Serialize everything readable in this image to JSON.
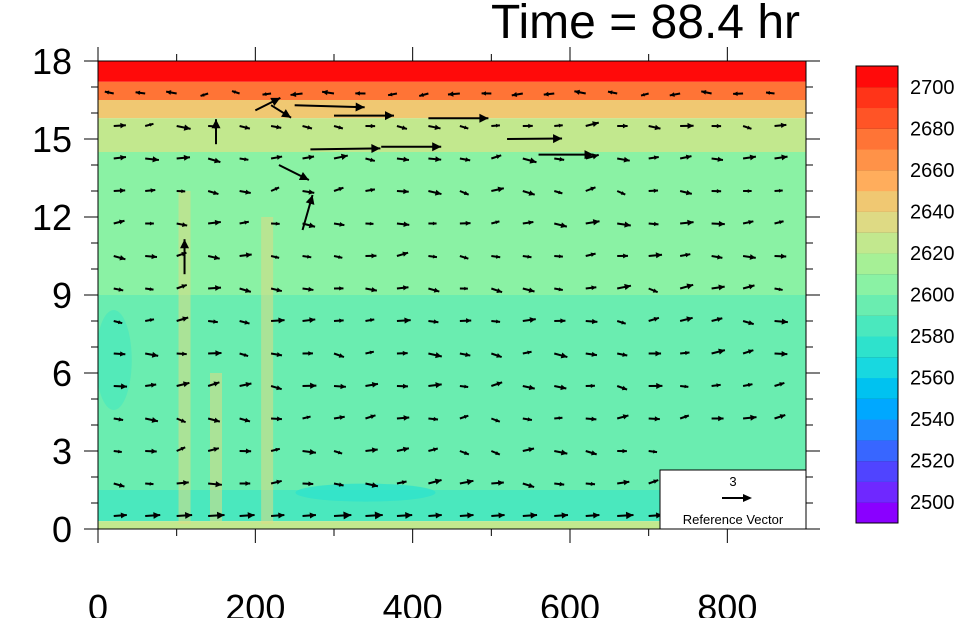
{
  "chart_data": {
    "type": "heatmap",
    "title": "Time = 88.4 hr",
    "xlabel": "",
    "ylabel": "",
    "xlim": [
      0,
      900
    ],
    "ylim": [
      0,
      18
    ],
    "x_ticks": [
      0,
      200,
      400,
      600,
      800
    ],
    "x_tick_labels": [
      "0",
      "200",
      "400",
      "600",
      "800"
    ],
    "y_ticks": [
      0,
      3,
      6,
      9,
      12,
      15,
      18
    ],
    "y_tick_labels": [
      "0",
      "3",
      "6",
      "9",
      "12",
      "15",
      "18"
    ],
    "grid": false,
    "colorbar": {
      "placement": "right",
      "levels": [
        2490,
        2500,
        2510,
        2520,
        2530,
        2540,
        2550,
        2560,
        2570,
        2580,
        2590,
        2600,
        2610,
        2620,
        2630,
        2640,
        2650,
        2660,
        2670,
        2680,
        2690,
        2700,
        2710
      ],
      "labels": [
        "2500",
        "2520",
        "2540",
        "2560",
        "2580",
        "2600",
        "2620",
        "2640",
        "2660",
        "2680",
        "2700"
      ],
      "label_values": [
        2500,
        2520,
        2540,
        2560,
        2580,
        2600,
        2620,
        2640,
        2660,
        2680,
        2700
      ],
      "colors": [
        "#8a00ff",
        "#6f28ff",
        "#5044ff",
        "#3866ff",
        "#1f8aff",
        "#00a8ff",
        "#00c2f0",
        "#18d8e0",
        "#2ee2cc",
        "#4ae8be",
        "#6aedb0",
        "#8af2a4",
        "#a6f096",
        "#c2e88e",
        "#deda84",
        "#f0c872",
        "#ffad5c",
        "#ff9248",
        "#ff7436",
        "#ff5426",
        "#ff3418",
        "#ff0a0a"
      ]
    },
    "field_bands": [
      {
        "z_range": [
          17.2,
          18
        ],
        "value": 2700
      },
      {
        "z_range": [
          16.5,
          17.2
        ],
        "value": 2675
      },
      {
        "z_range": [
          15.8,
          16.5
        ],
        "value": 2640
      },
      {
        "z_range": [
          14.5,
          15.8
        ],
        "value": 2625
      },
      {
        "z_range": [
          12.0,
          14.5
        ],
        "value": 2605
      },
      {
        "z_range": [
          9.0,
          12.0
        ],
        "value": 2600
      },
      {
        "z_range": [
          3.0,
          9.0
        ],
        "value": 2590
      },
      {
        "z_range": [
          1.5,
          3.0
        ],
        "value": 2595
      },
      {
        "z_range": [
          0.3,
          1.5
        ],
        "value": 2585
      },
      {
        "z_range": [
          0,
          0.3
        ],
        "value": 2620
      }
    ],
    "reference_vector": {
      "label": "Reference Vector",
      "magnitude": "3"
    },
    "vector_field": {
      "x_start": 0,
      "x_step": 40,
      "nx": 23,
      "z_start": 0.1,
      "z_step": 1.25,
      "nz": 15,
      "notable_vectors": [
        {
          "x": 250,
          "z": 16.3,
          "u": 14,
          "v": -0.4
        },
        {
          "x": 300,
          "z": 15.9,
          "u": 12,
          "v": 0
        },
        {
          "x": 420,
          "z": 15.8,
          "u": 12,
          "v": 0
        },
        {
          "x": 520,
          "z": 15.0,
          "u": 11,
          "v": 0.1
        },
        {
          "x": 270,
          "z": 14.6,
          "u": 14,
          "v": 0.2
        },
        {
          "x": 360,
          "z": 14.7,
          "u": 12,
          "v": 0
        },
        {
          "x": 560,
          "z": 14.4,
          "u": 11,
          "v": 0
        },
        {
          "x": 200,
          "z": 16.1,
          "u": 5,
          "v": 2.5
        },
        {
          "x": 150,
          "z": 14.8,
          "u": 0,
          "v": 5
        },
        {
          "x": 110,
          "z": 9.8,
          "u": 0,
          "v": 7
        },
        {
          "x": 260,
          "z": 11.5,
          "u": 2,
          "v": 7
        },
        {
          "x": 220,
          "z": 16.3,
          "u": 4,
          "v": -2.5
        },
        {
          "x": 230,
          "z": 14.0,
          "u": 6,
          "v": -3
        }
      ]
    }
  }
}
